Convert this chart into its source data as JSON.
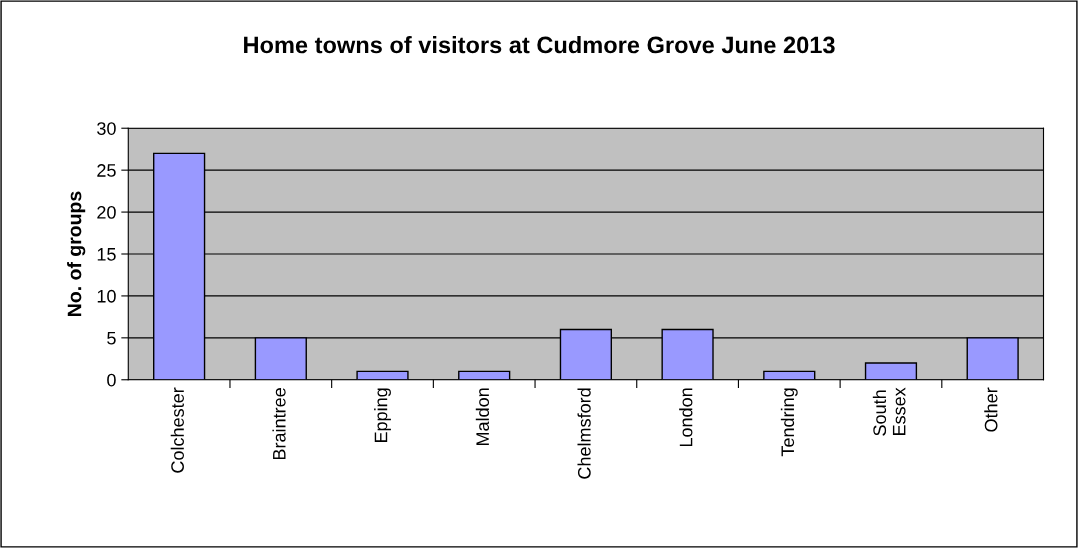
{
  "chart_data": {
    "type": "bar",
    "title": "Home towns of visitors at Cudmore Grove June 2013",
    "ylabel": "No. of groups",
    "categories": [
      "Colchester",
      "Braintree",
      "Epping",
      "Maldon",
      "Chelmsford",
      "London",
      "Tendring",
      "South\nEssex",
      "Other"
    ],
    "values": [
      27,
      5,
      1,
      1,
      6,
      6,
      1,
      2,
      5
    ],
    "color": "#9999ff",
    "ylim": [
      0,
      30
    ],
    "yticks": [
      0,
      5,
      10,
      15,
      20,
      25,
      30
    ],
    "grid": "y",
    "legend": false
  }
}
